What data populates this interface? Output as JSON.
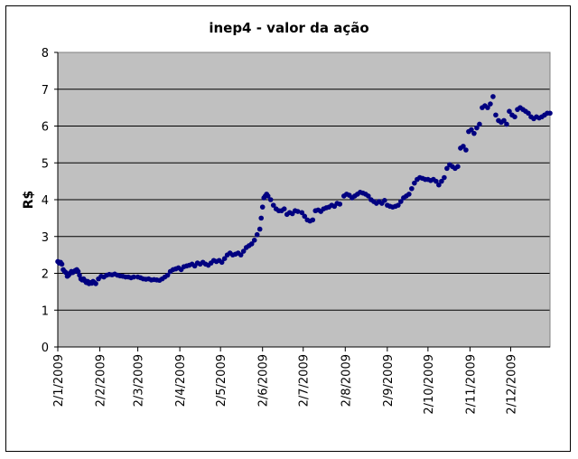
{
  "chart_data": {
    "type": "scatter",
    "title": "inep4 - valor da ação",
    "xlabel": "",
    "ylabel": "R$",
    "ylim": [
      0,
      8
    ],
    "y_ticks": [
      "0",
      "1",
      "2",
      "3",
      "4",
      "5",
      "6",
      "7",
      "8"
    ],
    "x_range": [
      "2009-01-02",
      "2009-12-31"
    ],
    "x_ticks": [
      {
        "date": "2009-01-02",
        "label": "2/1/2009"
      },
      {
        "date": "2009-02-02",
        "label": "2/2/2009"
      },
      {
        "date": "2009-03-02",
        "label": "2/3/2009"
      },
      {
        "date": "2009-04-02",
        "label": "2/4/2009"
      },
      {
        "date": "2009-05-02",
        "label": "2/5/2009"
      },
      {
        "date": "2009-06-02",
        "label": "2/6/2009"
      },
      {
        "date": "2009-07-02",
        "label": "2/7/2009"
      },
      {
        "date": "2009-08-02",
        "label": "2/8/2009"
      },
      {
        "date": "2009-09-02",
        "label": "2/9/2009"
      },
      {
        "date": "2009-10-02",
        "label": "2/10/2009"
      },
      {
        "date": "2009-11-02",
        "label": "2/11/2009"
      },
      {
        "date": "2009-12-02",
        "label": "2/12/2009"
      }
    ],
    "grid": "horizontal",
    "legend": "none",
    "colors": {
      "plot_bg": "#c0c0c0",
      "marker": "#000080",
      "grid": "#000000"
    },
    "series": [
      {
        "points": [
          [
            "2009-01-02",
            2.32
          ],
          [
            "2009-01-03",
            2.28
          ],
          [
            "2009-01-04",
            2.3
          ],
          [
            "2009-01-05",
            2.25
          ],
          [
            "2009-01-06",
            2.1
          ],
          [
            "2009-01-07",
            2.05
          ],
          [
            "2009-01-08",
            2.02
          ],
          [
            "2009-01-09",
            1.92
          ],
          [
            "2009-01-10",
            1.95
          ],
          [
            "2009-01-11",
            2.0
          ],
          [
            "2009-01-12",
            2.05
          ],
          [
            "2009-01-13",
            2.02
          ],
          [
            "2009-01-14",
            2.05
          ],
          [
            "2009-01-15",
            2.08
          ],
          [
            "2009-01-16",
            2.1
          ],
          [
            "2009-01-17",
            2.05
          ],
          [
            "2009-01-18",
            1.95
          ],
          [
            "2009-01-19",
            1.85
          ],
          [
            "2009-01-20",
            1.82
          ],
          [
            "2009-01-21",
            1.85
          ],
          [
            "2009-01-22",
            1.8
          ],
          [
            "2009-01-23",
            1.75
          ],
          [
            "2009-01-24",
            1.78
          ],
          [
            "2009-01-25",
            1.72
          ],
          [
            "2009-01-26",
            1.75
          ],
          [
            "2009-01-27",
            1.73
          ],
          [
            "2009-01-28",
            1.78
          ],
          [
            "2009-01-29",
            1.75
          ],
          [
            "2009-01-30",
            1.72
          ],
          [
            "2009-02-01",
            1.85
          ],
          [
            "2009-02-03",
            1.92
          ],
          [
            "2009-02-05",
            1.9
          ],
          [
            "2009-02-07",
            1.95
          ],
          [
            "2009-02-09",
            1.97
          ],
          [
            "2009-02-11",
            1.96
          ],
          [
            "2009-02-13",
            1.98
          ],
          [
            "2009-02-15",
            1.95
          ],
          [
            "2009-02-17",
            1.93
          ],
          [
            "2009-02-19",
            1.92
          ],
          [
            "2009-02-21",
            1.9
          ],
          [
            "2009-02-23",
            1.9
          ],
          [
            "2009-02-25",
            1.88
          ],
          [
            "2009-02-27",
            1.9
          ],
          [
            "2009-03-02",
            1.9
          ],
          [
            "2009-03-04",
            1.88
          ],
          [
            "2009-03-06",
            1.85
          ],
          [
            "2009-03-08",
            1.84
          ],
          [
            "2009-03-10",
            1.85
          ],
          [
            "2009-03-12",
            1.82
          ],
          [
            "2009-03-14",
            1.83
          ],
          [
            "2009-03-16",
            1.82
          ],
          [
            "2009-03-18",
            1.81
          ],
          [
            "2009-03-20",
            1.85
          ],
          [
            "2009-03-22",
            1.9
          ],
          [
            "2009-03-24",
            1.95
          ],
          [
            "2009-03-26",
            2.05
          ],
          [
            "2009-03-28",
            2.1
          ],
          [
            "2009-03-30",
            2.12
          ],
          [
            "2009-04-01",
            2.15
          ],
          [
            "2009-04-03",
            2.1
          ],
          [
            "2009-04-05",
            2.18
          ],
          [
            "2009-04-07",
            2.2
          ],
          [
            "2009-04-09",
            2.22
          ],
          [
            "2009-04-11",
            2.25
          ],
          [
            "2009-04-13",
            2.2
          ],
          [
            "2009-04-15",
            2.28
          ],
          [
            "2009-04-17",
            2.25
          ],
          [
            "2009-04-19",
            2.3
          ],
          [
            "2009-04-21",
            2.25
          ],
          [
            "2009-04-23",
            2.22
          ],
          [
            "2009-04-25",
            2.28
          ],
          [
            "2009-04-27",
            2.35
          ],
          [
            "2009-04-29",
            2.32
          ],
          [
            "2009-05-01",
            2.35
          ],
          [
            "2009-05-03",
            2.3
          ],
          [
            "2009-05-05",
            2.4
          ],
          [
            "2009-05-07",
            2.5
          ],
          [
            "2009-05-09",
            2.55
          ],
          [
            "2009-05-11",
            2.5
          ],
          [
            "2009-05-13",
            2.52
          ],
          [
            "2009-05-15",
            2.55
          ],
          [
            "2009-05-17",
            2.5
          ],
          [
            "2009-05-19",
            2.6
          ],
          [
            "2009-05-21",
            2.7
          ],
          [
            "2009-05-23",
            2.75
          ],
          [
            "2009-05-25",
            2.8
          ],
          [
            "2009-05-27",
            2.9
          ],
          [
            "2009-05-29",
            3.05
          ],
          [
            "2009-05-31",
            3.2
          ],
          [
            "2009-06-01",
            3.5
          ],
          [
            "2009-06-02",
            3.8
          ],
          [
            "2009-06-03",
            4.05
          ],
          [
            "2009-06-04",
            4.1
          ],
          [
            "2009-06-05",
            4.15
          ],
          [
            "2009-06-06",
            4.1
          ],
          [
            "2009-06-08",
            4.0
          ],
          [
            "2009-06-10",
            3.85
          ],
          [
            "2009-06-12",
            3.75
          ],
          [
            "2009-06-14",
            3.7
          ],
          [
            "2009-06-16",
            3.7
          ],
          [
            "2009-06-18",
            3.75
          ],
          [
            "2009-06-20",
            3.6
          ],
          [
            "2009-06-22",
            3.65
          ],
          [
            "2009-06-24",
            3.62
          ],
          [
            "2009-06-26",
            3.7
          ],
          [
            "2009-06-28",
            3.68
          ],
          [
            "2009-07-01",
            3.65
          ],
          [
            "2009-07-03",
            3.55
          ],
          [
            "2009-07-05",
            3.45
          ],
          [
            "2009-07-07",
            3.42
          ],
          [
            "2009-07-09",
            3.45
          ],
          [
            "2009-07-11",
            3.7
          ],
          [
            "2009-07-13",
            3.72
          ],
          [
            "2009-07-15",
            3.68
          ],
          [
            "2009-07-17",
            3.75
          ],
          [
            "2009-07-19",
            3.78
          ],
          [
            "2009-07-21",
            3.8
          ],
          [
            "2009-07-23",
            3.85
          ],
          [
            "2009-07-25",
            3.82
          ],
          [
            "2009-07-27",
            3.9
          ],
          [
            "2009-07-29",
            3.88
          ],
          [
            "2009-08-01",
            4.1
          ],
          [
            "2009-08-03",
            4.15
          ],
          [
            "2009-08-05",
            4.12
          ],
          [
            "2009-08-07",
            4.05
          ],
          [
            "2009-08-09",
            4.1
          ],
          [
            "2009-08-11",
            4.15
          ],
          [
            "2009-08-13",
            4.2
          ],
          [
            "2009-08-15",
            4.18
          ],
          [
            "2009-08-17",
            4.15
          ],
          [
            "2009-08-19",
            4.1
          ],
          [
            "2009-08-21",
            4.0
          ],
          [
            "2009-08-23",
            3.95
          ],
          [
            "2009-08-25",
            3.9
          ],
          [
            "2009-08-27",
            3.95
          ],
          [
            "2009-08-29",
            3.9
          ],
          [
            "2009-08-31",
            3.98
          ],
          [
            "2009-09-02",
            3.85
          ],
          [
            "2009-09-04",
            3.82
          ],
          [
            "2009-09-06",
            3.8
          ],
          [
            "2009-09-08",
            3.82
          ],
          [
            "2009-09-10",
            3.85
          ],
          [
            "2009-09-12",
            3.95
          ],
          [
            "2009-09-14",
            4.05
          ],
          [
            "2009-09-16",
            4.1
          ],
          [
            "2009-09-18",
            4.15
          ],
          [
            "2009-09-20",
            4.3
          ],
          [
            "2009-09-22",
            4.45
          ],
          [
            "2009-09-24",
            4.55
          ],
          [
            "2009-09-26",
            4.6
          ],
          [
            "2009-09-28",
            4.58
          ],
          [
            "2009-09-30",
            4.55
          ],
          [
            "2009-10-02",
            4.55
          ],
          [
            "2009-10-04",
            4.52
          ],
          [
            "2009-10-06",
            4.55
          ],
          [
            "2009-10-08",
            4.5
          ],
          [
            "2009-10-10",
            4.4
          ],
          [
            "2009-10-12",
            4.5
          ],
          [
            "2009-10-14",
            4.6
          ],
          [
            "2009-10-16",
            4.85
          ],
          [
            "2009-10-18",
            4.95
          ],
          [
            "2009-10-20",
            4.9
          ],
          [
            "2009-10-22",
            4.85
          ],
          [
            "2009-10-24",
            4.9
          ],
          [
            "2009-10-26",
            5.4
          ],
          [
            "2009-10-28",
            5.45
          ],
          [
            "2009-10-30",
            5.35
          ],
          [
            "2009-11-01",
            5.85
          ],
          [
            "2009-11-03",
            5.9
          ],
          [
            "2009-11-05",
            5.8
          ],
          [
            "2009-11-07",
            5.95
          ],
          [
            "2009-11-09",
            6.05
          ],
          [
            "2009-11-11",
            6.5
          ],
          [
            "2009-11-13",
            6.55
          ],
          [
            "2009-11-15",
            6.5
          ],
          [
            "2009-11-17",
            6.6
          ],
          [
            "2009-11-19",
            6.8
          ],
          [
            "2009-11-21",
            6.3
          ],
          [
            "2009-11-23",
            6.15
          ],
          [
            "2009-11-25",
            6.1
          ],
          [
            "2009-11-27",
            6.15
          ],
          [
            "2009-11-29",
            6.05
          ],
          [
            "2009-12-01",
            6.4
          ],
          [
            "2009-12-03",
            6.3
          ],
          [
            "2009-12-05",
            6.25
          ],
          [
            "2009-12-07",
            6.45
          ],
          [
            "2009-12-09",
            6.5
          ],
          [
            "2009-12-11",
            6.45
          ],
          [
            "2009-12-13",
            6.4
          ],
          [
            "2009-12-15",
            6.35
          ],
          [
            "2009-12-17",
            6.25
          ],
          [
            "2009-12-19",
            6.2
          ],
          [
            "2009-12-21",
            6.25
          ],
          [
            "2009-12-23",
            6.22
          ],
          [
            "2009-12-25",
            6.25
          ],
          [
            "2009-12-27",
            6.3
          ],
          [
            "2009-12-29",
            6.35
          ],
          [
            "2009-12-31",
            6.35
          ]
        ]
      }
    ]
  }
}
